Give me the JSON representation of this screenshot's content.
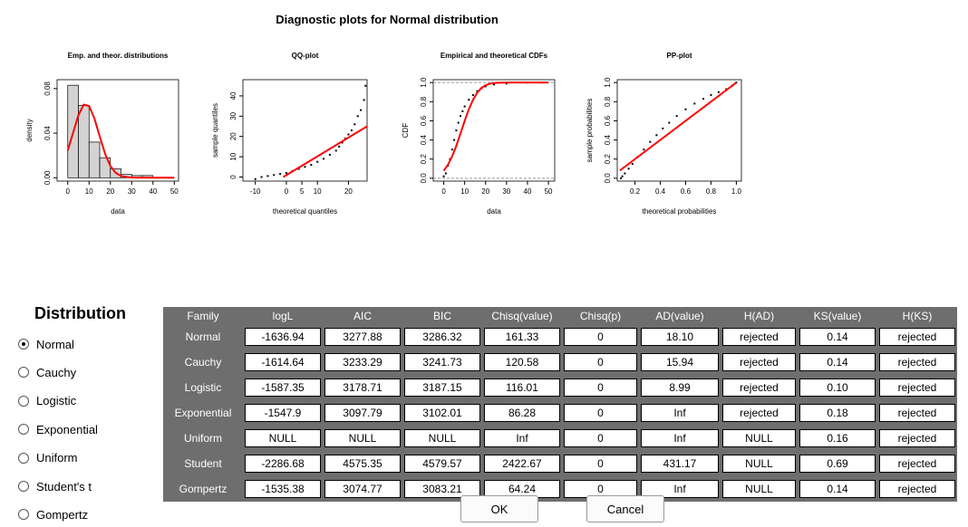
{
  "window": {
    "title": "Diagnostic plots for Normal distribution"
  },
  "plots": [
    {
      "title": "Emp. and theor. distributions",
      "xlabel": "data",
      "ylabel": "density",
      "xlim": [
        -5,
        52
      ],
      "ylim": [
        -0.003,
        0.088
      ],
      "xticks": [
        0,
        10,
        20,
        30,
        40,
        50
      ],
      "yticks": [
        {
          "value": 0,
          "label": "0.00"
        },
        0.04,
        0.08
      ],
      "histogram": {
        "bins": [
          0,
          5,
          10,
          15,
          20,
          25,
          30,
          35,
          40,
          45,
          50
        ],
        "values": [
          0.083,
          0.065,
          0.032,
          0.018,
          0.008,
          0.003,
          0.002,
          0.002,
          0,
          0
        ],
        "color": "#d3d3d3"
      },
      "curve": {
        "x": [
          0,
          2.5,
          5,
          7.5,
          10,
          12.5,
          15,
          17.5,
          20,
          22.5,
          25,
          30,
          40,
          50
        ],
        "values": [
          0.0244,
          0.0403,
          0.0561,
          0.0656,
          0.0644,
          0.0533,
          0.037,
          0.0216,
          0.0106,
          0.0044,
          0.0015,
          0.0001,
          0,
          0
        ],
        "color": "#ff0000"
      }
    },
    {
      "title": "QQ-plot",
      "xlabel": "theoretical quantiles",
      "ylabel": "sample quantiles",
      "xlim": [
        -14,
        26
      ],
      "ylim": [
        -2,
        48
      ],
      "xticks": [
        -10,
        0,
        5,
        10,
        20
      ],
      "yticks": [
        0,
        10,
        20,
        30,
        40
      ],
      "points": {
        "x": [
          -10,
          -8,
          -6,
          -4,
          -2,
          0,
          2,
          4,
          6,
          8,
          10,
          12,
          14,
          16,
          17,
          18,
          19,
          20,
          21,
          22,
          23,
          24,
          25,
          25.5
        ],
        "values": [
          -1,
          0,
          0.5,
          1,
          1.5,
          2,
          3,
          4,
          5,
          6,
          7.5,
          9,
          11,
          13,
          15,
          17,
          19,
          21,
          23,
          26,
          30,
          33,
          38,
          45
        ],
        "color": "#000000"
      },
      "curve": {
        "x": [
          -1,
          26
        ],
        "values": [
          0,
          25
        ],
        "color": "#ff0000"
      }
    },
    {
      "title": "Empirical and theoretical CDFs",
      "xlabel": "data",
      "ylabel": "CDF",
      "xlim": [
        -5,
        53
      ],
      "ylim": [
        -0.03,
        1.03
      ],
      "xticks": [
        0,
        10,
        20,
        30,
        40,
        50
      ],
      "yticks": [
        {
          "value": 0,
          "label": "0.0"
        },
        0.2,
        0.4,
        0.6,
        0.8,
        {
          "value": 1,
          "label": "1.0"
        }
      ],
      "reference_lines": [
        0,
        1
      ],
      "points": {
        "x": [
          0,
          1,
          2,
          3,
          4,
          5,
          6,
          7,
          8,
          9,
          10,
          12,
          14,
          16,
          18,
          20,
          24,
          30,
          40,
          47
        ],
        "values": [
          0.02,
          0.05,
          0.13,
          0.2,
          0.3,
          0.4,
          0.5,
          0.58,
          0.65,
          0.7,
          0.75,
          0.82,
          0.87,
          0.91,
          0.94,
          0.96,
          0.98,
          0.99,
          1,
          1
        ],
        "color": "#000000"
      },
      "curve": {
        "x": [
          0,
          2,
          4,
          6,
          8,
          10,
          12,
          14,
          16,
          18,
          20,
          22,
          25,
          30,
          40,
          50
        ],
        "values": [
          0.078,
          0.14,
          0.227,
          0.338,
          0.467,
          0.599,
          0.72,
          0.82,
          0.894,
          0.943,
          0.972,
          0.988,
          0.997,
          1,
          1,
          1
        ],
        "color": "#ff0000"
      }
    },
    {
      "title": "PP-plot",
      "xlabel": "theoretical probabilities",
      "ylabel": "sample probabilities",
      "xlim": [
        0.06,
        1.04
      ],
      "ylim": [
        -0.03,
        1.03
      ],
      "xticks": [
        0.2,
        0.4,
        0.6,
        0.8,
        {
          "value": 1,
          "label": "1.0"
        }
      ],
      "yticks": [
        {
          "value": 0,
          "label": "0.0"
        },
        0.2,
        0.4,
        0.6,
        0.8,
        {
          "value": 1,
          "label": "1.0"
        }
      ],
      "points": {
        "x": [
          0.09,
          0.1,
          0.12,
          0.15,
          0.18,
          0.22,
          0.27,
          0.32,
          0.37,
          0.42,
          0.47,
          0.53,
          0.6,
          0.67,
          0.74,
          0.8,
          0.86,
          0.92,
          0.97,
          1
        ],
        "values": [
          0,
          0.02,
          0.05,
          0.1,
          0.15,
          0.22,
          0.3,
          0.38,
          0.45,
          0.52,
          0.58,
          0.65,
          0.72,
          0.78,
          0.83,
          0.87,
          0.9,
          0.93,
          0.97,
          1
        ],
        "color": "#000000"
      },
      "curve": {
        "x": [
          0.08,
          1
        ],
        "values": [
          0.08,
          1
        ],
        "color": "#ff0000"
      }
    }
  ],
  "distribution": {
    "label": "Distribution",
    "options": [
      "Normal",
      "Cauchy",
      "Logistic",
      "Exponential",
      "Uniform",
      "Student's t",
      "Gompertz"
    ],
    "selected": 0
  },
  "table": {
    "headers": [
      "Family",
      "logL",
      "AIC",
      "BIC",
      "Chisq(value)",
      "Chisq(p)",
      "AD(value)",
      "H(AD)",
      "KS(value)",
      "H(KS)"
    ],
    "rows": [
      [
        "Normal",
        "-1636.94",
        "3277.88",
        "3286.32",
        "161.33",
        "0",
        "18.10",
        "rejected",
        "0.14",
        "rejected"
      ],
      [
        "Cauchy",
        "-1614.64",
        "3233.29",
        "3241.73",
        "120.58",
        "0",
        "15.94",
        "rejected",
        "0.14",
        "rejected"
      ],
      [
        "Logistic",
        "-1587.35",
        "3178.71",
        "3187.15",
        "116.01",
        "0",
        "8.99",
        "rejected",
        "0.10",
        "rejected"
      ],
      [
        "Exponential",
        "-1547.9",
        "3097.79",
        "3102.01",
        "86.28",
        "0",
        "Inf",
        "rejected",
        "0.18",
        "rejected"
      ],
      [
        "Uniform",
        "NULL",
        "NULL",
        "NULL",
        "Inf",
        "0",
        "Inf",
        "NULL",
        "0.16",
        "rejected"
      ],
      [
        "Student",
        "-2286.68",
        "4575.35",
        "4579.57",
        "2422.67",
        "0",
        "431.17",
        "NULL",
        "0.69",
        "rejected"
      ],
      [
        "Gompertz",
        "-1535.38",
        "3074.77",
        "3083.21",
        "64.24",
        "0",
        "Inf",
        "NULL",
        "0.14",
        "rejected"
      ]
    ]
  },
  "buttons": [
    "OK",
    "Cancel"
  ]
}
